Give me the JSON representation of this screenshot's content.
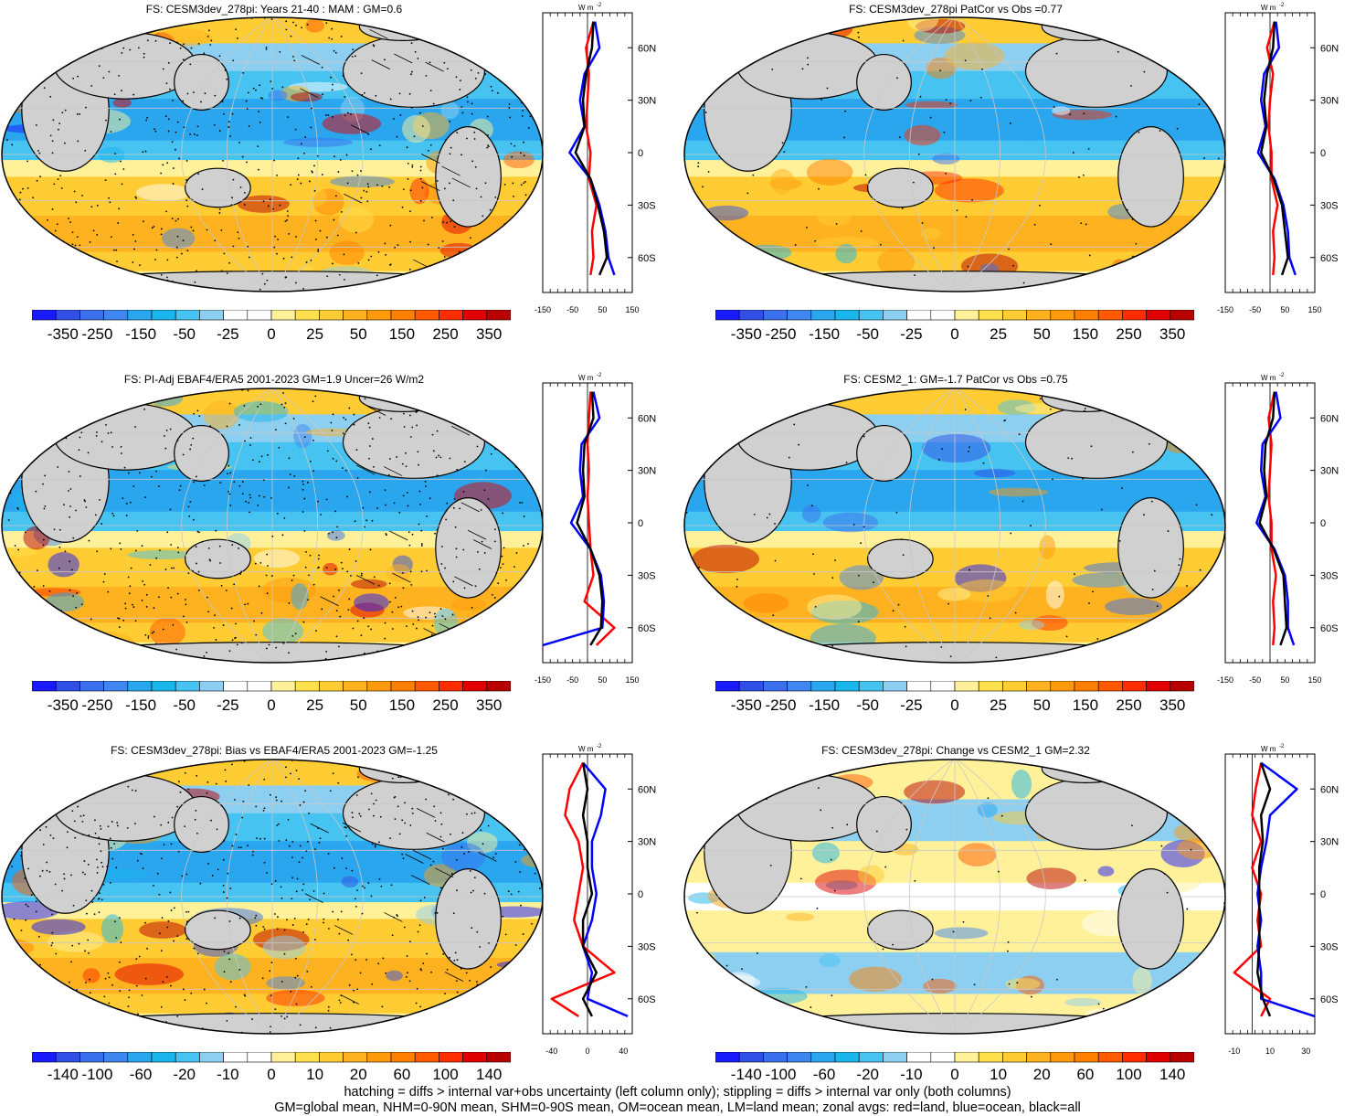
{
  "panels": [
    {
      "title": "FS: CESM3dev_278pi: Years 21-40 : MAM : GM=0.6",
      "stipple": "heavy",
      "hatch": true,
      "seed": 11
    },
    {
      "title": "FS: CESM3dev_278pi PatCor vs Obs =0.77",
      "stipple": "light",
      "hatch": false,
      "seed": 12
    },
    {
      "title": "FS: PI-Adj EBAF4/ERA5 2001-2023 GM=1.9 Uncer=26 W/m2",
      "stipple": "heavy",
      "hatch": true,
      "seed": 13
    },
    {
      "title": "FS: CESM2_1: GM=-1.7 PatCor vs Obs =0.75",
      "stipple": "light",
      "hatch": false,
      "seed": 14
    },
    {
      "title": "FS: CESM3dev_278pi: Bias vs EBAF4/ERA5 2001-2023 GM=-1.25",
      "stipple": "heavy",
      "hatch": true,
      "seed": 15
    },
    {
      "title": "FS: CESM3dev_278pi: Change vs CESM2_1 GM=2.32",
      "stipple": "sparse",
      "hatch": false,
      "seed": 16
    }
  ],
  "colorbars": {
    "abs_labels": [
      "-350",
      "-250",
      "-150",
      "-50",
      "-25",
      "0",
      "25",
      "50",
      "150",
      "250",
      "350"
    ],
    "diff_labels": [
      "-140",
      "-100",
      "-60",
      "-20",
      "-10",
      "0",
      "10",
      "20",
      "60",
      "100",
      "140"
    ],
    "colors": [
      "#1a1aff",
      "#2f4fe6",
      "#3a6fee",
      "#3f86f0",
      "#2aa6ef",
      "#19b6ee",
      "#46c3f0",
      "#8dcff0",
      "#ffffff",
      "#ffffff",
      "#fff19a",
      "#ffe04d",
      "#ffcc33",
      "#ffb21f",
      "#ff9a0d",
      "#ff7f00",
      "#ff5a00",
      "#ff2d00",
      "#e00000",
      "#b80000"
    ]
  },
  "zonal_axes": {
    "unit_label": "W m",
    "unit_exponent": "-2",
    "lat_labels": [
      "60N",
      "30N",
      "0",
      "30S",
      "60S"
    ],
    "x_ticks_abs": [
      "-150",
      "-50",
      "50",
      "150"
    ],
    "x_ticks_diff_left": [
      "-40",
      "0",
      "40"
    ],
    "x_ticks_diff_right": [
      "-10",
      "10",
      "30"
    ]
  },
  "chart_data": [
    {
      "type": "line",
      "panel": 1,
      "title": "FS: CESM3dev_278pi: Years 21-40 : MAM : GM=0.6",
      "xlabel": "",
      "ylabel": "",
      "xlim": [
        -150,
        150
      ],
      "y_ticks": [
        "60N",
        "30N",
        "0",
        "30S",
        "60S"
      ],
      "series": [
        {
          "legend": "land",
          "color": "#ff0000",
          "lat": [
            75,
            60,
            45,
            30,
            15,
            0,
            -15,
            -30,
            -45,
            -60,
            -70
          ],
          "values": [
            20,
            -5,
            5,
            0,
            -5,
            10,
            5,
            30,
            15,
            20,
            10
          ]
        },
        {
          "legend": "ocean",
          "color": "#0000ff",
          "lat": [
            75,
            60,
            45,
            30,
            15,
            0,
            -15,
            -30,
            -45,
            -60,
            -70
          ],
          "values": [
            25,
            40,
            -10,
            -25,
            -10,
            -60,
            10,
            40,
            60,
            70,
            90
          ]
        },
        {
          "legend": "all",
          "color": "#000000",
          "lat": [
            75,
            60,
            45,
            30,
            15,
            0,
            -15,
            -30,
            -45,
            -60,
            -70
          ],
          "values": [
            20,
            15,
            -5,
            -15,
            -10,
            -40,
            10,
            35,
            55,
            65,
            40
          ]
        }
      ]
    },
    {
      "type": "line",
      "panel": 2,
      "title": "FS: CESM3dev_278pi PatCor vs Obs =0.77",
      "xlabel": "",
      "ylabel": "",
      "xlim": [
        -150,
        150
      ],
      "y_ticks": [
        "60N",
        "30N",
        "0",
        "30S",
        "60S"
      ],
      "series": [
        {
          "legend": "land",
          "color": "#ff0000",
          "lat": [
            75,
            60,
            45,
            30,
            15,
            0,
            -15,
            -30,
            -45,
            -60,
            -70
          ],
          "values": [
            15,
            -10,
            10,
            0,
            -5,
            5,
            5,
            25,
            10,
            15,
            10
          ]
        },
        {
          "legend": "ocean",
          "color": "#0000ff",
          "lat": [
            75,
            60,
            45,
            30,
            15,
            0,
            -15,
            -30,
            -45,
            -60,
            -70
          ],
          "values": [
            20,
            30,
            -20,
            -30,
            -15,
            -40,
            15,
            45,
            60,
            65,
            85
          ]
        },
        {
          "legend": "all",
          "color": "#000000",
          "lat": [
            75,
            60,
            45,
            30,
            15,
            0,
            -15,
            -30,
            -45,
            -60,
            -70
          ],
          "values": [
            15,
            10,
            -10,
            -20,
            -12,
            -30,
            12,
            40,
            50,
            60,
            40
          ]
        }
      ]
    },
    {
      "type": "line",
      "panel": 3,
      "title": "FS: PI-Adj EBAF4/ERA5 2001-2023 GM=1.9 Uncer=26 W/m2",
      "xlabel": "",
      "ylabel": "",
      "xlim": [
        -150,
        150
      ],
      "y_ticks": [
        "60N",
        "30N",
        "0",
        "30S",
        "60S"
      ],
      "series": [
        {
          "legend": "land",
          "color": "#ff0000",
          "lat": [
            75,
            60,
            45,
            30,
            15,
            0,
            -15,
            -30,
            -45,
            -60,
            -70
          ],
          "values": [
            10,
            5,
            0,
            5,
            0,
            5,
            10,
            20,
            -10,
            90,
            30
          ]
        },
        {
          "legend": "ocean",
          "color": "#0000ff",
          "lat": [
            75,
            60,
            45,
            30,
            15,
            0,
            -15,
            -30,
            -45,
            -60,
            -70
          ],
          "values": [
            20,
            40,
            -20,
            -25,
            -15,
            -55,
            10,
            45,
            55,
            50,
            -150
          ]
        },
        {
          "legend": "all",
          "color": "#000000",
          "lat": [
            75,
            60,
            45,
            30,
            15,
            0,
            -15,
            -30,
            -45,
            -60,
            -70
          ],
          "values": [
            15,
            20,
            -10,
            -15,
            -10,
            -35,
            10,
            40,
            50,
            45,
            10
          ]
        }
      ]
    },
    {
      "type": "line",
      "panel": 4,
      "title": "FS: CESM2_1: GM=-1.7 PatCor vs Obs =0.75",
      "xlabel": "",
      "ylabel": "",
      "xlim": [
        -150,
        150
      ],
      "y_ticks": [
        "60N",
        "30N",
        "0",
        "30S",
        "60S"
      ],
      "series": [
        {
          "legend": "land",
          "color": "#ff0000",
          "lat": [
            75,
            60,
            45,
            30,
            15,
            0,
            -15,
            -30,
            -45,
            -60,
            -70
          ],
          "values": [
            15,
            -5,
            5,
            0,
            -5,
            5,
            5,
            20,
            10,
            15,
            10
          ]
        },
        {
          "legend": "ocean",
          "color": "#0000ff",
          "lat": [
            75,
            60,
            45,
            30,
            15,
            0,
            -15,
            -30,
            -45,
            -60,
            -70
          ],
          "values": [
            20,
            35,
            -25,
            -30,
            -15,
            -45,
            15,
            50,
            60,
            60,
            80
          ]
        },
        {
          "legend": "all",
          "color": "#000000",
          "lat": [
            75,
            60,
            45,
            30,
            15,
            0,
            -15,
            -30,
            -45,
            -60,
            -70
          ],
          "values": [
            15,
            10,
            -15,
            -20,
            -12,
            -35,
            12,
            45,
            50,
            55,
            35
          ]
        }
      ]
    },
    {
      "type": "line",
      "panel": 5,
      "title": "FS: CESM3dev_278pi: Bias vs EBAF4/ERA5 2001-2023 GM=-1.25",
      "xlabel": "",
      "ylabel": "",
      "xlim": [
        -50,
        50
      ],
      "y_ticks": [
        "60N",
        "30N",
        "0",
        "30S",
        "60S"
      ],
      "series": [
        {
          "legend": "land",
          "color": "#ff0000",
          "lat": [
            75,
            60,
            45,
            30,
            15,
            0,
            -15,
            -30,
            -45,
            -60,
            -70
          ],
          "values": [
            -5,
            -20,
            -25,
            -10,
            -5,
            -10,
            -15,
            -5,
            30,
            -40,
            -10
          ]
        },
        {
          "legend": "ocean",
          "color": "#0000ff",
          "lat": [
            75,
            60,
            45,
            30,
            15,
            0,
            -15,
            -30,
            -45,
            -60,
            -70
          ],
          "values": [
            -5,
            20,
            15,
            5,
            5,
            10,
            5,
            -5,
            5,
            0,
            45
          ]
        },
        {
          "legend": "all",
          "color": "#000000",
          "lat": [
            75,
            60,
            45,
            30,
            15,
            0,
            -15,
            -30,
            -45,
            -60,
            -70
          ],
          "values": [
            -5,
            0,
            -5,
            0,
            0,
            5,
            -5,
            -5,
            10,
            -5,
            5
          ]
        }
      ]
    },
    {
      "type": "line",
      "panel": 6,
      "title": "FS: CESM3dev_278pi: Change vs CESM2_1 GM=2.32",
      "xlabel": "",
      "ylabel": "",
      "xlim": [
        -15,
        35
      ],
      "y_ticks": [
        "60N",
        "30N",
        "0",
        "30S",
        "60S"
      ],
      "series": [
        {
          "legend": "land",
          "color": "#ff0000",
          "lat": [
            75,
            60,
            45,
            30,
            15,
            0,
            -15,
            -30,
            -45,
            -60,
            -70
          ],
          "values": [
            5,
            2,
            0,
            5,
            0,
            5,
            3,
            5,
            -10,
            10,
            5
          ]
        },
        {
          "legend": "ocean",
          "color": "#0000ff",
          "lat": [
            75,
            60,
            45,
            30,
            15,
            0,
            -15,
            -30,
            -45,
            -60,
            -70
          ],
          "values": [
            5,
            25,
            10,
            8,
            5,
            3,
            5,
            3,
            5,
            5,
            35
          ]
        },
        {
          "legend": "all",
          "color": "#000000",
          "lat": [
            75,
            60,
            45,
            30,
            15,
            0,
            -15,
            -30,
            -45,
            -60,
            -70
          ],
          "values": [
            5,
            10,
            5,
            6,
            4,
            4,
            4,
            4,
            3,
            6,
            10
          ]
        }
      ]
    }
  ],
  "footer": {
    "line1": "hatching = diffs > internal var+obs uncertainty (left column only); stippling = diffs > internal var only (both columns)",
    "line2": "GM=global mean, NHM=0-90N mean, SHM=0-90S mean, OM=ocean mean, LM=land mean; zonal avgs: red=land, blue=ocean, black=all"
  }
}
